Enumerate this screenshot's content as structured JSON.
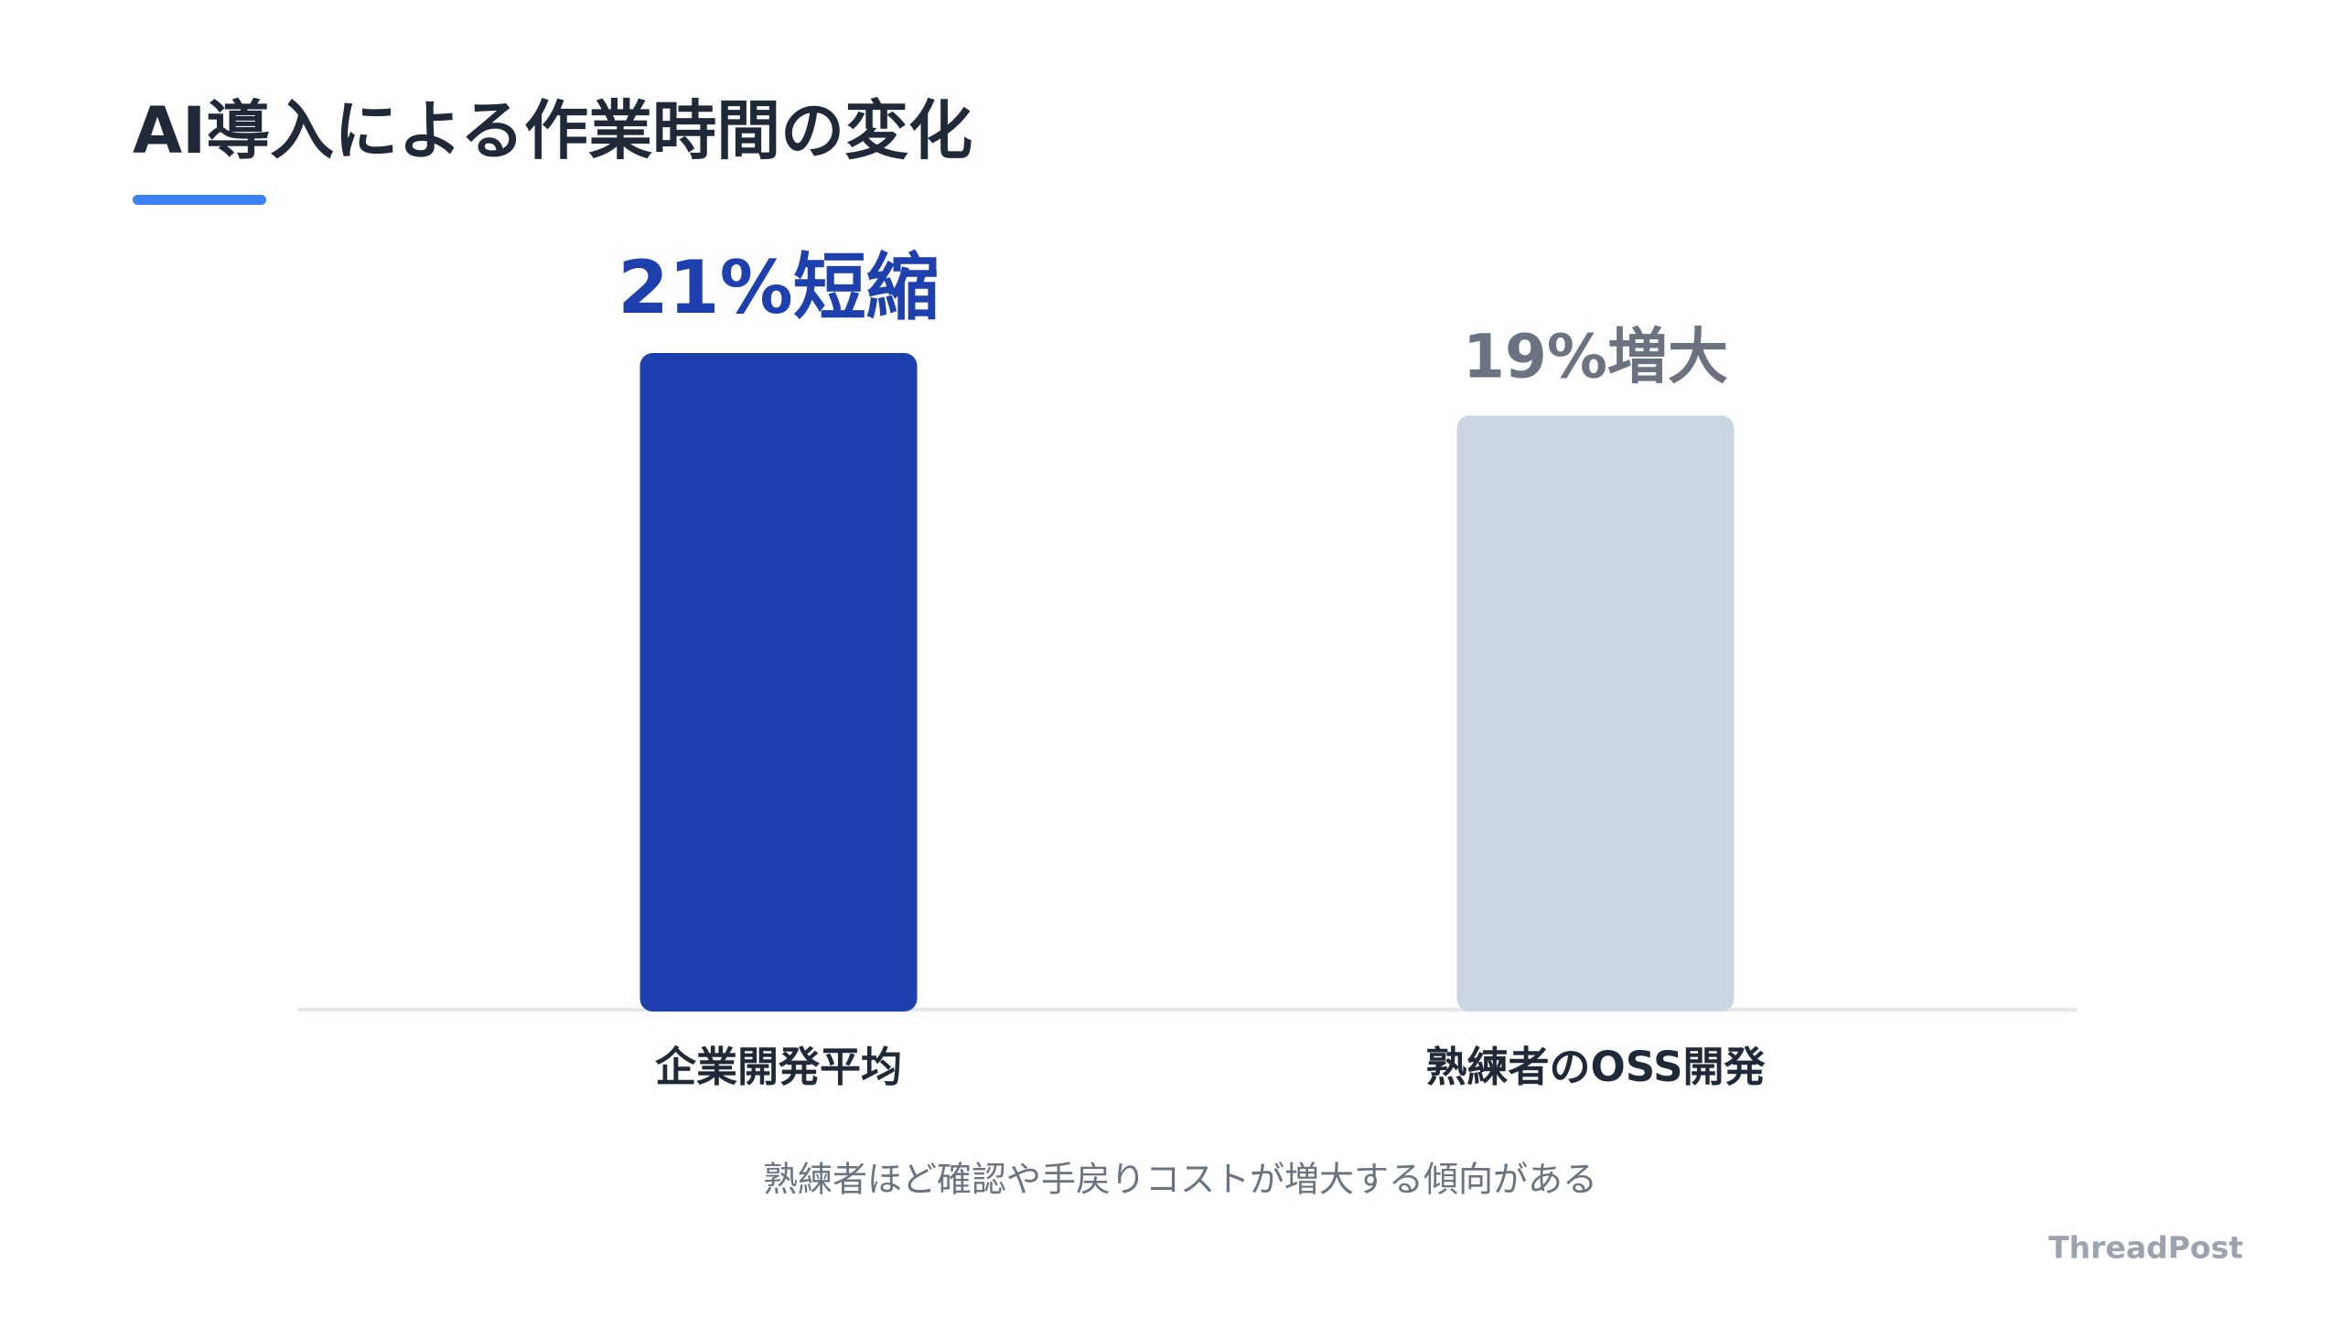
{
  "chart_data": {
    "type": "bar",
    "title": "AI導入による作業時間の変化",
    "categories": [
      "企業開発平均",
      "熟練者のOSS開発"
    ],
    "values": [
      21,
      19
    ],
    "value_labels": [
      "21%短縮",
      "19%増大"
    ],
    "colors": [
      "#1e40af",
      "#cbd5e1"
    ],
    "label_colors": [
      "#1e40af",
      "#6b7280"
    ],
    "note": "熟練者ほど確認や手戻りコストが増大する傾向がある"
  },
  "brand": "ThreadPost"
}
